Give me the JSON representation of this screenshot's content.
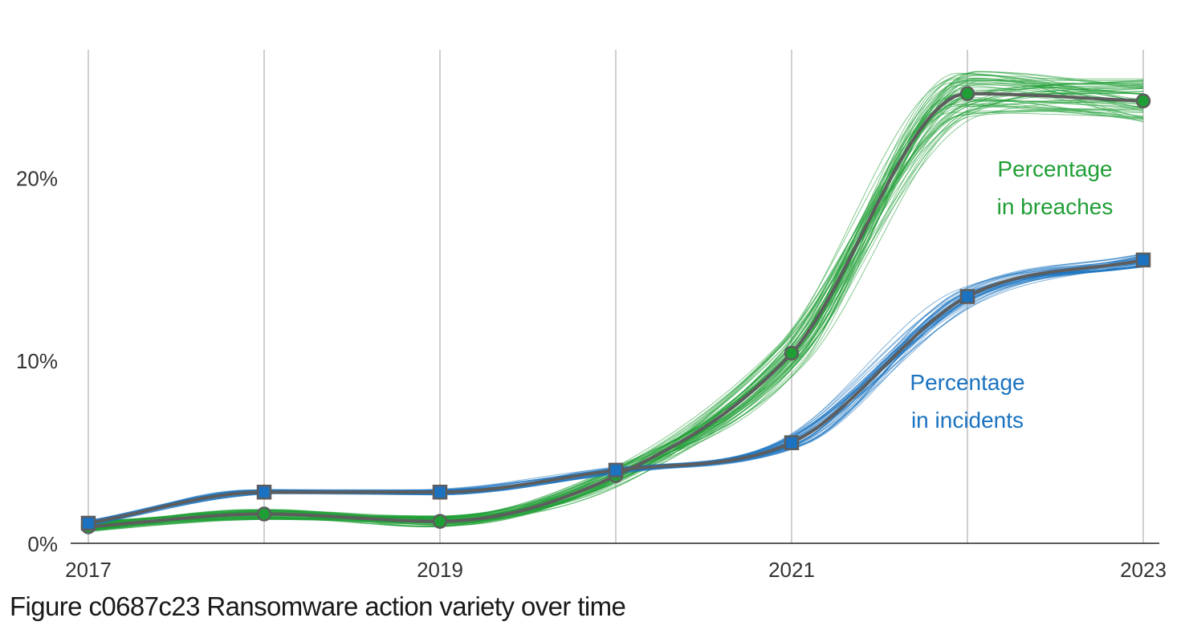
{
  "chart_data": {
    "type": "line",
    "x": [
      2017,
      2018,
      2019,
      2020,
      2021,
      2022,
      2023
    ],
    "xticks": [
      "2017",
      "2019",
      "2021",
      "2023"
    ],
    "xlim": [
      2017,
      2023
    ],
    "ylim": [
      0,
      0.27
    ],
    "yticks": [
      0,
      0.1,
      0.2
    ],
    "ytick_labels": [
      "0%",
      "10%",
      "20%"
    ],
    "grid": "vertical",
    "series": [
      {
        "name": "Percentage in breaches",
        "label_lines": [
          "Percentage",
          "in breaches"
        ],
        "color": "#1f9e35",
        "marker": "circle",
        "values": [
          0.009,
          0.016,
          0.012,
          0.037,
          0.104,
          0.246,
          0.242
        ]
      },
      {
        "name": "Percentage in incidents",
        "label_lines": [
          "Percentage",
          "in incidents"
        ],
        "color": "#1a72c0",
        "marker": "square",
        "values": [
          0.011,
          0.028,
          0.028,
          0.04,
          0.055,
          0.135,
          0.155
        ]
      }
    ],
    "central_line_color": "#5d5d5d",
    "caption": "Figure c0687c23 Ransomware action variety over time"
  }
}
